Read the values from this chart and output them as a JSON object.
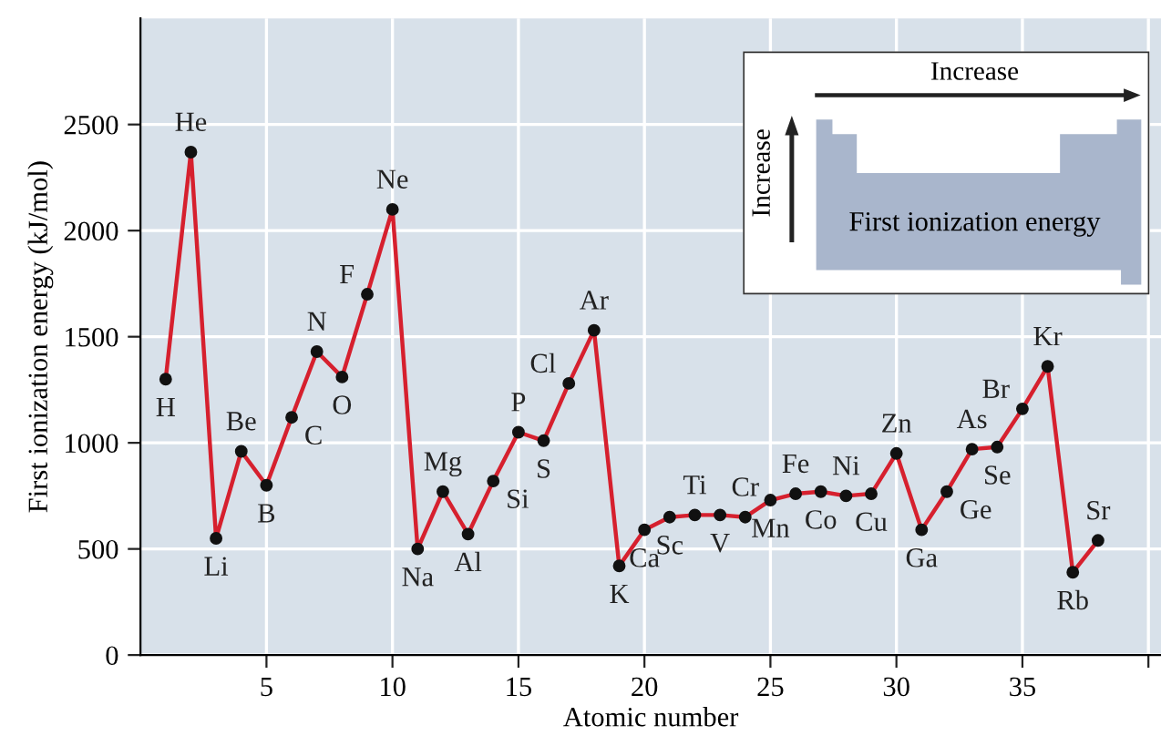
{
  "chart_data": {
    "type": "line",
    "xlabel": "Atomic number",
    "ylabel": "First ionization energy (kJ/mol)",
    "x": [
      1,
      2,
      3,
      4,
      5,
      6,
      7,
      8,
      9,
      10,
      11,
      12,
      13,
      14,
      15,
      16,
      17,
      18,
      19,
      20,
      21,
      22,
      23,
      24,
      25,
      26,
      27,
      28,
      29,
      30,
      31,
      32,
      33,
      34,
      35,
      36,
      37,
      38
    ],
    "series": [
      {
        "color": "#d6202e",
        "values": [
          1300,
          2370,
          550,
          960,
          800,
          1120,
          1430,
          1310,
          1700,
          2100,
          500,
          770,
          570,
          820,
          1050,
          1010,
          1280,
          1530,
          420,
          590,
          650,
          660,
          660,
          650,
          730,
          760,
          770,
          750,
          760,
          950,
          590,
          770,
          970,
          980,
          1160,
          1360,
          390,
          540
        ]
      }
    ],
    "marker": "circle",
    "xlim": [
      0,
      40.5
    ],
    "xticks": [
      5,
      10,
      15,
      20,
      25,
      30,
      35,
      {
        "value": 40,
        "label": null
      }
    ],
    "ylim": [
      0,
      3000
    ],
    "yticks": [
      0,
      500,
      1000,
      1500,
      2000,
      2500
    ],
    "grid": true,
    "annotations": [
      {
        "text": "H",
        "x": 1,
        "y": 1300
      },
      {
        "text": "He",
        "x": 2,
        "y": 2370
      },
      {
        "text": "Li",
        "x": 3,
        "y": 550
      },
      {
        "text": "Be",
        "x": 4,
        "y": 960
      },
      {
        "text": "B",
        "x": 5,
        "y": 800
      },
      {
        "text": "C",
        "x": 6,
        "y": 1120
      },
      {
        "text": "N",
        "x": 7,
        "y": 1430
      },
      {
        "text": "O",
        "x": 8,
        "y": 1310
      },
      {
        "text": "F",
        "x": 9,
        "y": 1700
      },
      {
        "text": "Ne",
        "x": 10,
        "y": 2100
      },
      {
        "text": "Na",
        "x": 11,
        "y": 500
      },
      {
        "text": "Mg",
        "x": 12,
        "y": 770
      },
      {
        "text": "Al",
        "x": 13,
        "y": 570
      },
      {
        "text": "Si",
        "x": 14,
        "y": 820
      },
      {
        "text": "P",
        "x": 15,
        "y": 1050
      },
      {
        "text": "S",
        "x": 16,
        "y": 1010
      },
      {
        "text": "Cl",
        "x": 17,
        "y": 1280
      },
      {
        "text": "Ar",
        "x": 18,
        "y": 1530
      },
      {
        "text": "K",
        "x": 19,
        "y": 420
      },
      {
        "text": "Ca",
        "x": 20,
        "y": 590
      },
      {
        "text": "Sc",
        "x": 21,
        "y": 650
      },
      {
        "text": "Ti",
        "x": 22,
        "y": 660
      },
      {
        "text": "V",
        "x": 23,
        "y": 660
      },
      {
        "text": "Cr",
        "x": 24,
        "y": 650
      },
      {
        "text": "Mn",
        "x": 25,
        "y": 730
      },
      {
        "text": "Fe",
        "x": 26,
        "y": 760
      },
      {
        "text": "Co",
        "x": 27,
        "y": 770
      },
      {
        "text": "Ni",
        "x": 28,
        "y": 750
      },
      {
        "text": "Cu",
        "x": 29,
        "y": 760
      },
      {
        "text": "Zn",
        "x": 30,
        "y": 950
      },
      {
        "text": "Ga",
        "x": 31,
        "y": 590
      },
      {
        "text": "Ge",
        "x": 32,
        "y": 770
      },
      {
        "text": "As",
        "x": 33,
        "y": 970
      },
      {
        "text": "Se",
        "x": 34,
        "y": 980
      },
      {
        "text": "Br",
        "x": 35,
        "y": 1160
      },
      {
        "text": "Kr",
        "x": 36,
        "y": 1360
      },
      {
        "text": "Rb",
        "x": 37,
        "y": 390
      },
      {
        "text": "Sr",
        "x": 38,
        "y": 540
      },
      "Increase",
      "Increase",
      "First ionization energy"
    ]
  }
}
